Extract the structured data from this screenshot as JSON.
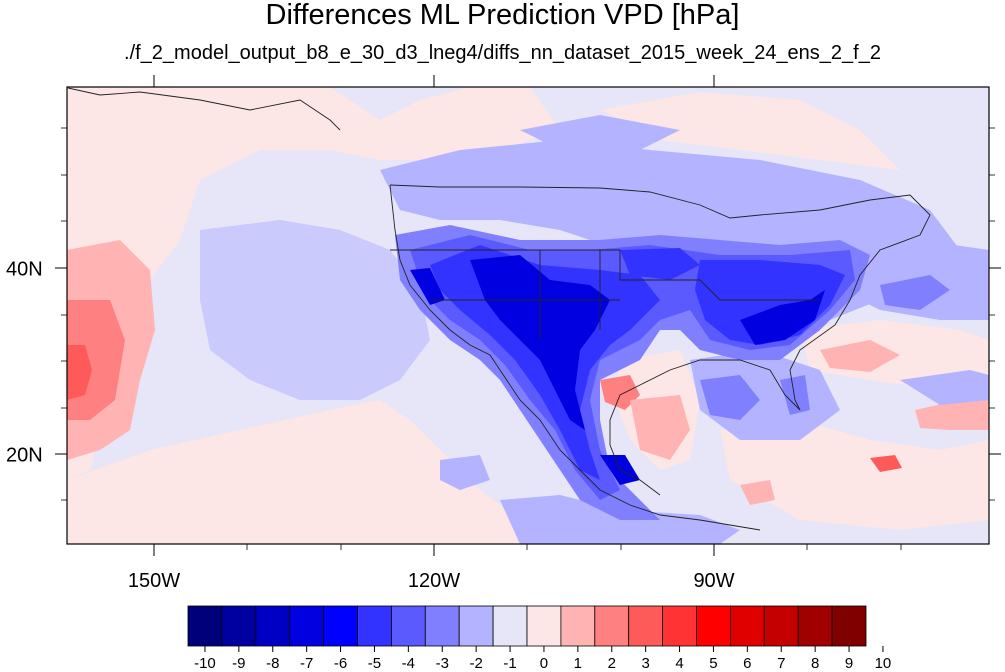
{
  "title": "Differences ML Prediction VPD [hPa]",
  "subtitle": "./f_2_model_output_b8_e_30_d3_lneg4/diffs_nn_dataset_2015_week_24_ens_2_f_2",
  "map": {
    "lon_labels": [
      "150W",
      "120W",
      "90W"
    ],
    "lat_labels": [
      "40N",
      "20N"
    ],
    "colormap": [
      "#00007a",
      "#0000a0",
      "#0000c4",
      "#0000e0",
      "#0000ff",
      "#3333ff",
      "#5a5aff",
      "#8080ff",
      "#b3b3ff",
      "#e6e6f8",
      "#fde6e6",
      "#ffb3b3",
      "#ff8080",
      "#ff5a5a",
      "#ff3333",
      "#ff0000",
      "#e00000",
      "#c40000",
      "#a00000",
      "#800000"
    ]
  },
  "colorbar": {
    "labels": [
      "-10",
      "-9",
      "-8",
      "-7",
      "-6",
      "-5",
      "-4",
      "-3",
      "-2",
      "-1",
      "0",
      "1",
      "2",
      "3",
      "4",
      "5",
      "6",
      "7",
      "8",
      "9",
      "10"
    ],
    "colors": [
      "#00007a",
      "#0000a0",
      "#0000c4",
      "#0000e0",
      "#0000ff",
      "#3333ff",
      "#5a5aff",
      "#8080ff",
      "#b3b3ff",
      "#e6e6f8",
      "#fde6e6",
      "#ffb3b3",
      "#ff8080",
      "#ff5a5a",
      "#ff3333",
      "#ff0000",
      "#e00000",
      "#c40000",
      "#a00000",
      "#800000"
    ]
  }
}
